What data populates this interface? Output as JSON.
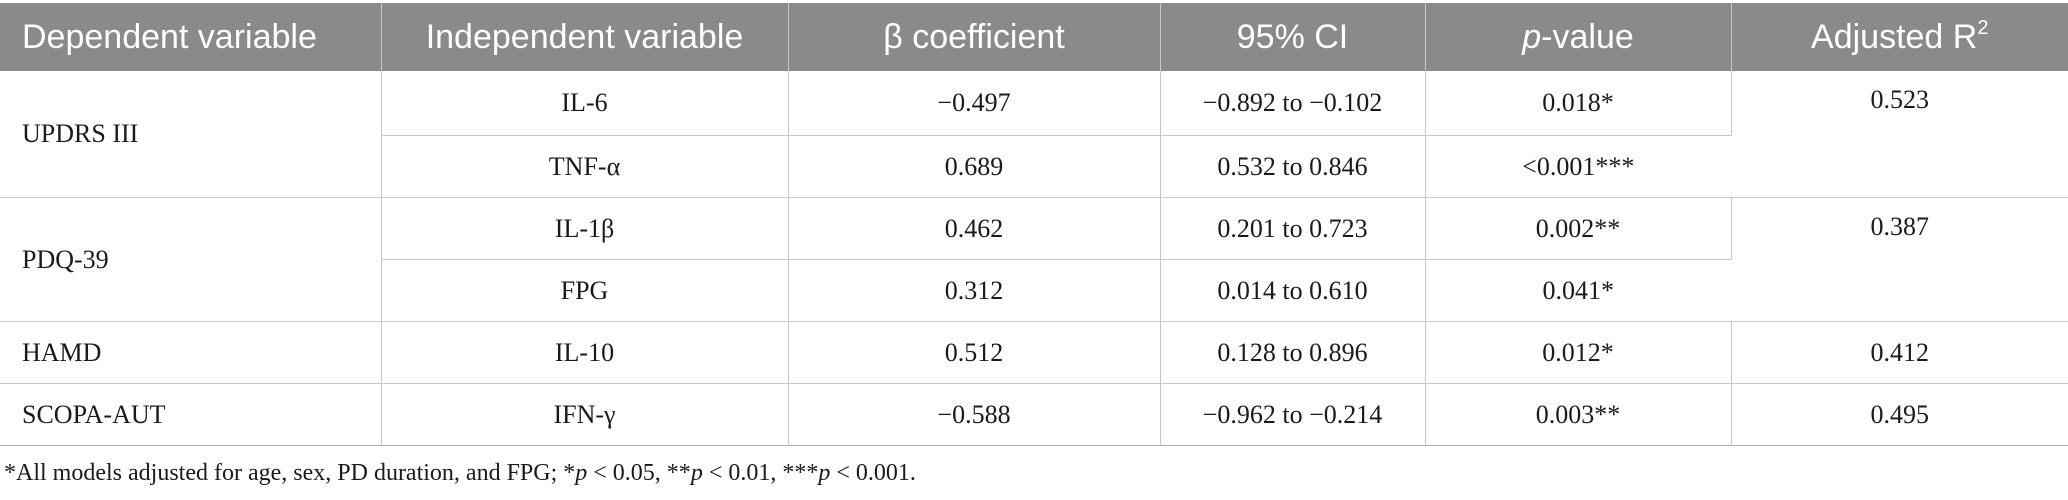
{
  "table": {
    "headers": {
      "dependent": "Dependent variable",
      "independent": "Independent variable",
      "beta": "β coefficient",
      "ci": "95% CI",
      "p_italic": "p",
      "p_rest": "-value",
      "r2_base": "Adjusted R",
      "r2_sup": "2"
    },
    "groups": [
      {
        "dependent": "UPDRS III",
        "adjusted_r2": "0.523",
        "rows": [
          {
            "independent": "IL-6",
            "beta": "−0.497",
            "ci": "−0.892 to −0.102",
            "p": "0.018*"
          },
          {
            "independent": "TNF-α",
            "beta": "0.689",
            "ci": "0.532 to 0.846",
            "p": "<0.001***"
          }
        ]
      },
      {
        "dependent": "PDQ-39",
        "adjusted_r2": "0.387",
        "rows": [
          {
            "independent": "IL-1β",
            "beta": "0.462",
            "ci": "0.201 to 0.723",
            "p": "0.002**"
          },
          {
            "independent": "FPG",
            "beta": "0.312",
            "ci": "0.014 to 0.610",
            "p": "0.041*"
          }
        ]
      },
      {
        "dependent": "HAMD",
        "adjusted_r2": "0.412",
        "rows": [
          {
            "independent": "IL-10",
            "beta": "0.512",
            "ci": "0.128 to 0.896",
            "p": "0.012*"
          }
        ]
      },
      {
        "dependent": "SCOPA-AUT",
        "adjusted_r2": "0.495",
        "rows": [
          {
            "independent": "IFN-γ",
            "beta": "−0.588",
            "ci": "−0.962 to −0.214",
            "p": "0.003**"
          }
        ]
      }
    ]
  },
  "footnote": {
    "lead": "*All models adjusted for age, sex, PD duration, and FPG; *",
    "p1": "p",
    "t1": " < 0.05, **",
    "p2": "p",
    "t2": " < 0.01, ***",
    "p3": "p",
    "t3": " < 0.001."
  }
}
